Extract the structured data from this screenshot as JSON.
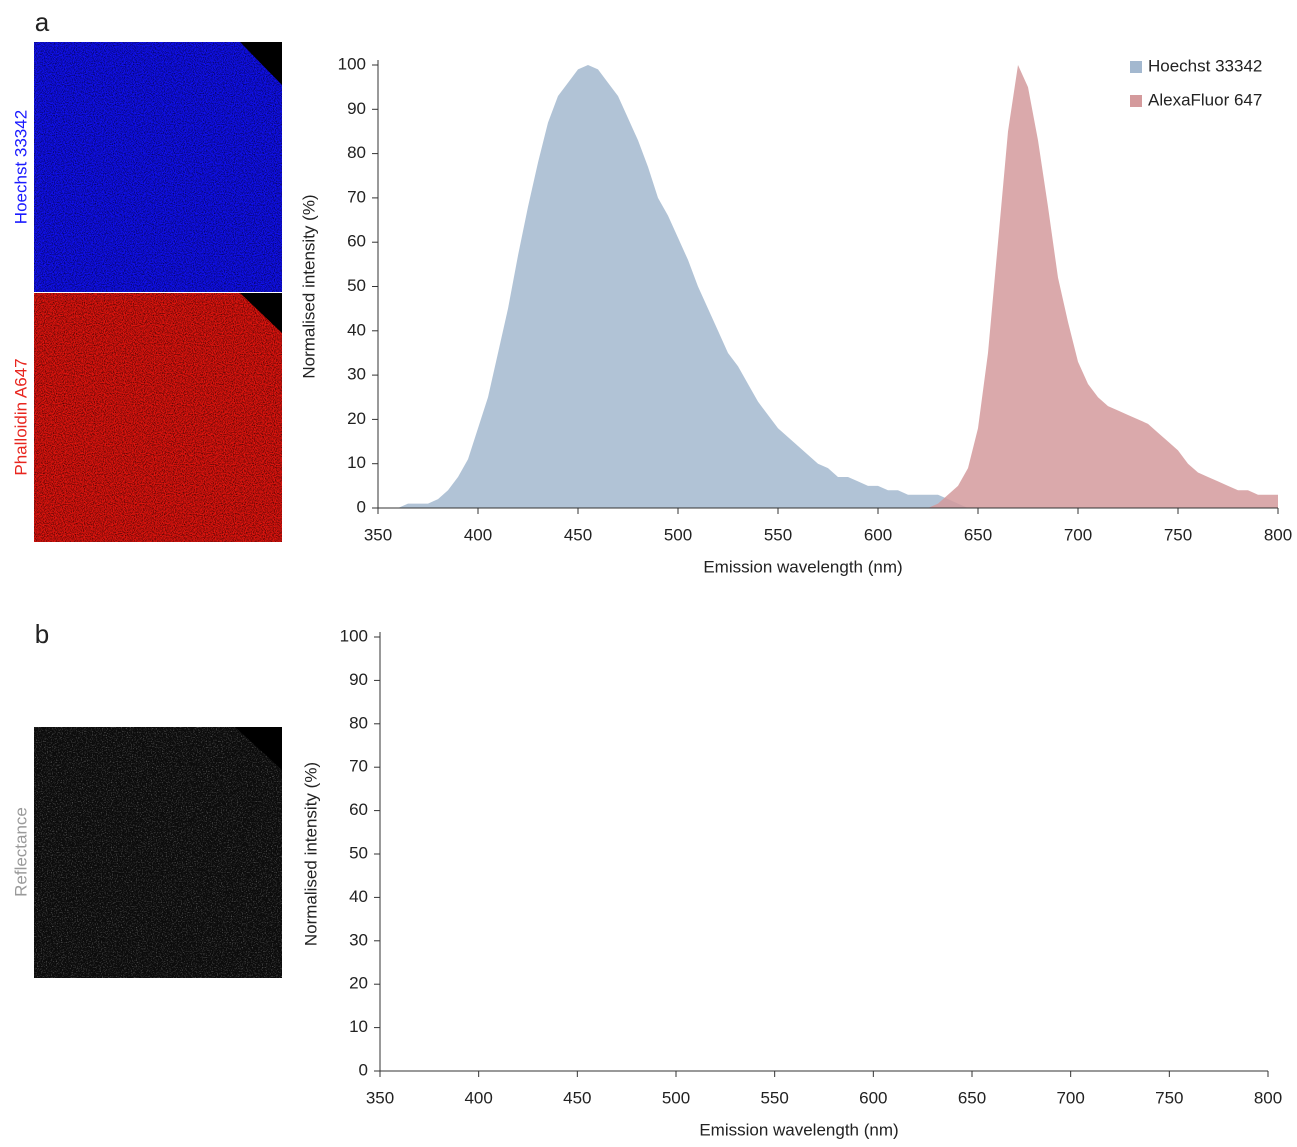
{
  "chart_data": [
    {
      "type": "area",
      "panel_label": "a",
      "image_labels": [
        {
          "text": "Hoechst 33342",
          "color": "#1a1aff"
        },
        {
          "text": "Phalloidin A647",
          "color": "#e8261f"
        }
      ],
      "xlabel": "Emission wavelength (nm)",
      "ylabel": "Normalised intensity (%)",
      "xlim": [
        350,
        800
      ],
      "xticks": [
        350,
        400,
        450,
        500,
        550,
        600,
        650,
        700,
        750,
        800
      ],
      "ylim": [
        0,
        100
      ],
      "yticks": [
        0,
        10,
        20,
        30,
        40,
        50,
        60,
        70,
        80,
        90,
        100
      ],
      "legend": "upper right",
      "series": [
        {
          "name": "Hoechst 33342",
          "color": "#a3b8cf",
          "x": [
            360,
            365,
            370,
            375,
            380,
            385,
            390,
            395,
            400,
            405,
            410,
            415,
            420,
            425,
            430,
            435,
            440,
            445,
            450,
            455,
            460,
            465,
            470,
            475,
            480,
            485,
            490,
            495,
            500,
            505,
            510,
            515,
            520,
            525,
            530,
            535,
            540,
            545,
            550,
            555,
            560,
            565,
            570,
            575,
            580,
            585,
            590,
            595,
            600,
            605,
            610,
            615,
            620,
            625,
            630,
            635,
            640,
            645
          ],
          "values": [
            0,
            1,
            1,
            1,
            2,
            4,
            7,
            11,
            18,
            25,
            35,
            45,
            57,
            68,
            78,
            87,
            93,
            96,
            99,
            100,
            99,
            96,
            93,
            88,
            83,
            77,
            70,
            66,
            61,
            56,
            50,
            45,
            40,
            35,
            32,
            28,
            24,
            21,
            18,
            16,
            14,
            12,
            10,
            9,
            7,
            7,
            6,
            5,
            5,
            4,
            4,
            3,
            3,
            3,
            3,
            2,
            1,
            0
          ]
        },
        {
          "name": "AlexaFluor 647",
          "color": "#d49a9c",
          "x": [
            625,
            630,
            635,
            640,
            645,
            650,
            655,
            660,
            665,
            670,
            675,
            680,
            685,
            690,
            695,
            700,
            705,
            710,
            715,
            720,
            725,
            730,
            735,
            740,
            745,
            750,
            755,
            760,
            765,
            770,
            775,
            780,
            785,
            790,
            795,
            800
          ],
          "values": [
            0,
            1,
            3,
            5,
            9,
            18,
            35,
            60,
            85,
            100,
            95,
            83,
            68,
            52,
            42,
            33,
            28,
            25,
            23,
            22,
            21,
            20,
            19,
            17,
            15,
            13,
            10,
            8,
            7,
            6,
            5,
            4,
            4,
            3,
            3,
            3
          ]
        }
      ]
    },
    {
      "type": "area",
      "panel_label": "b",
      "image_labels": [
        {
          "text": "Reflectance",
          "color": "#9a9a9a"
        }
      ],
      "xlabel": "Emission wavelength (nm)",
      "ylabel": "Normalised intensity (%)",
      "xlim": [
        350,
        800
      ],
      "xticks": [
        350,
        400,
        450,
        500,
        550,
        600,
        650,
        700,
        750,
        800
      ],
      "ylim": [
        0,
        100
      ],
      "yticks": [
        0,
        10,
        20,
        30,
        40,
        50,
        60,
        70,
        80,
        90,
        100
      ],
      "series": []
    }
  ]
}
